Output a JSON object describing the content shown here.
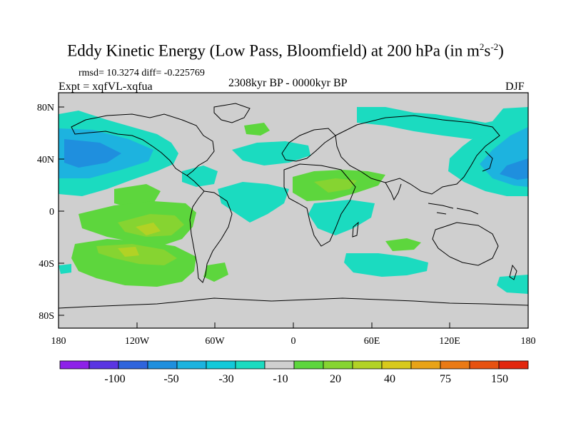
{
  "title": {
    "main": "Eddy Kinetic Energy (Low Pass, Bloomfield) at 200 hPa (in m",
    "sup1": "2",
    "mid": "s",
    "sup2": "-2",
    "close": ")"
  },
  "stats": "rmsd= 10.3274 diff= -0.225769",
  "experiment": "Expt = xqfVL-xqfua",
  "period": "2308kyr BP - 0000kyr BP",
  "season": "DJF",
  "lat_labels": [
    "80N",
    "40N",
    "0",
    "40S",
    "80S"
  ],
  "lon_labels": [
    "180",
    "120W",
    "60W",
    "0",
    "60E",
    "120E",
    "180"
  ],
  "colorbar": {
    "colors": [
      "#8d21e8",
      "#5a35e2",
      "#2f64dc",
      "#1f8fde",
      "#1db3df",
      "#12c9d9",
      "#1bdbc0",
      "#cfcfcf",
      "#5dd63d",
      "#86d431",
      "#b2d225",
      "#d8c91c",
      "#e8a317",
      "#ea7a14",
      "#e75210",
      "#e2260d"
    ],
    "labels": [
      "-100",
      "-50",
      "-30",
      "-10",
      "20",
      "40",
      "75",
      "150"
    ]
  },
  "palette": {
    "background": "#cfcfcf",
    "cyan": "#1bdbc0",
    "lightblue": "#1db3df",
    "blue": "#1f8fde",
    "green": "#5dd63d",
    "lime": "#86d431",
    "yellowgreen": "#b2d225"
  }
}
